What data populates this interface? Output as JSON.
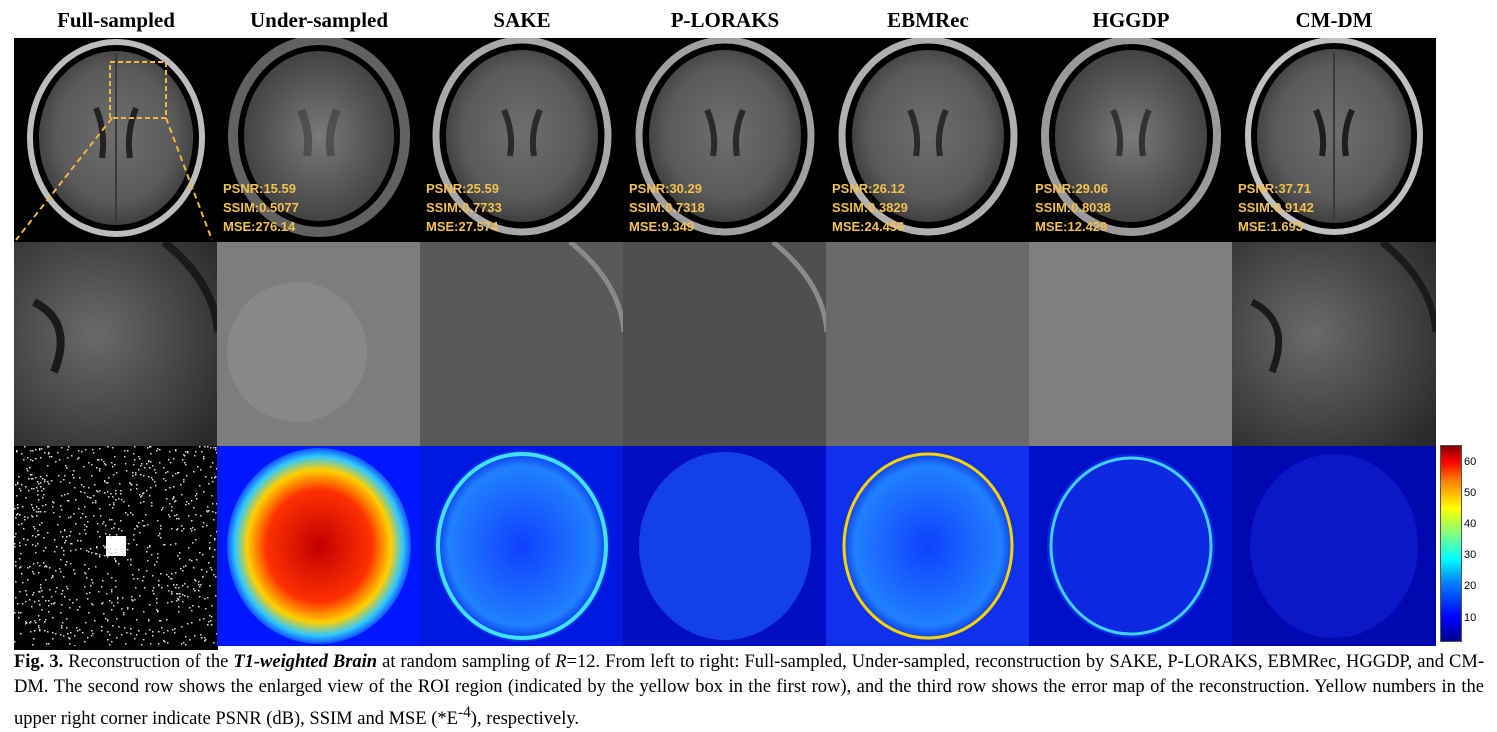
{
  "columns": [
    "Full-sampled",
    "Under-sampled",
    "SAKE",
    "P-LORAKS",
    "EBMRec",
    "HGGDP",
    "CM-DM"
  ],
  "metrics": [
    null,
    {
      "psnr": "PSNR:15.59",
      "ssim": "SSIM:0.5077",
      "mse": "MSE:276.14"
    },
    {
      "psnr": "PSNR:25.59",
      "ssim": "SSIM:0.7733",
      "mse": "MSE:27.574"
    },
    {
      "psnr": "PSNR:30.29",
      "ssim": "SSIM:0.7318",
      "mse": "MSE:9.349"
    },
    {
      "psnr": "PSNR:26.12",
      "ssim": "SSIM:0.3829",
      "mse": "MSE:24.456"
    },
    {
      "psnr": "PSNR:29.06",
      "ssim": "SSIM:0.8038",
      "mse": "MSE:12.429"
    },
    {
      "psnr": "PSNR:37.71",
      "ssim": "SSIM:0.9142",
      "mse": "MSE:1.693"
    }
  ],
  "colorbar": {
    "ticks": [
      "60",
      "50",
      "40",
      "30",
      "20",
      "10"
    ]
  },
  "caption": {
    "fig_label": "Fig. 3.",
    "part1": " Reconstruction of the ",
    "emph": "T1-weighted Brain",
    "part2": " at random sampling of ",
    "r": "R",
    "part3": "=12. From left to right: Full-sampled, Under-sampled, reconstruction by SAKE, P-LORAKS, EBMRec, HGGDP, and CM-DM. The second row shows the enlarged view of the ROI region (indicated by the yellow box in the first row), and the third row shows the error map of the reconstruction. Yellow numbers in the upper right corner indicate PSNR (dB), SSIM and MSE (*E",
    "sup": "-4",
    "part4": "), respectively."
  },
  "colors": {
    "metric_text": "#f2c14e",
    "roi": "#f0b73a"
  }
}
